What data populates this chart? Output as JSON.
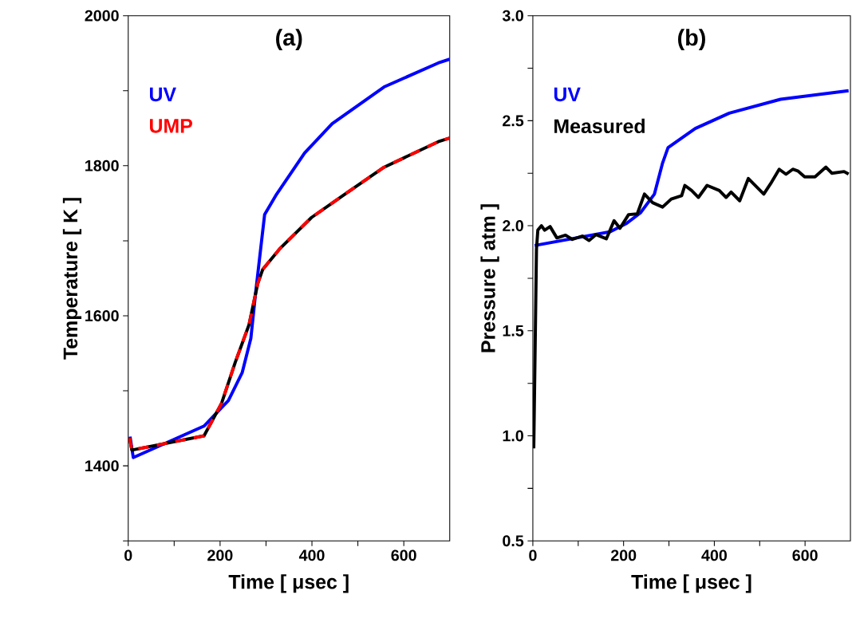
{
  "chart_data": [
    {
      "type": "line",
      "title": "(a)",
      "xlabel": "Time [ μsec ]",
      "ylabel": "Temperature [ K ]",
      "legend": "top left",
      "xlim": [
        0,
        700
      ],
      "ylim": [
        1300,
        2000
      ],
      "xticks": [
        0,
        {
          "value": 100,
          "label": null
        },
        200,
        {
          "value": 300,
          "label": null
        },
        400,
        {
          "value": 500,
          "label": null
        },
        600
      ],
      "yticks": [
        {
          "value": 1300,
          "label": null
        },
        1400,
        {
          "value": 1500,
          "label": null
        },
        1600,
        {
          "value": 1700,
          "label": null
        },
        1800,
        {
          "value": 1900,
          "label": null
        },
        2000
      ],
      "series": [
        {
          "name": "UV",
          "color": "#0000ff",
          "line_style": "solid",
          "x": [
            4,
            11,
            165,
            218,
            248,
            267,
            278,
            290,
            297,
            323,
            384,
            444,
            557,
            675,
            700
          ],
          "values": [
            1439,
            1411,
            1453,
            1487,
            1524,
            1570,
            1634,
            1698,
            1735,
            1762,
            1817,
            1856,
            1905,
            1937,
            1942
          ]
        },
        {
          "color": "#000000",
          "line_style": "solid",
          "x": [
            3,
            8,
            165,
            203,
            233,
            263,
            282,
            293,
            331,
            399,
            474,
            557,
            675,
            700
          ],
          "values": [
            1437,
            1421,
            1440,
            1483,
            1538,
            1588,
            1643,
            1662,
            1690,
            1731,
            1763,
            1798,
            1832,
            1837
          ]
        },
        {
          "name": "UMP",
          "color": "#ff0000",
          "line_style": "dashed",
          "x": [
            3,
            8,
            165,
            203,
            233,
            263,
            282,
            293,
            331,
            399,
            474,
            557,
            675,
            700
          ],
          "values": [
            1437,
            1421,
            1440,
            1483,
            1538,
            1588,
            1643,
            1662,
            1690,
            1731,
            1763,
            1798,
            1832,
            1837
          ]
        }
      ]
    },
    {
      "type": "line",
      "title": "(b)",
      "xlabel": "Time [ μsec ]",
      "ylabel": "Pressure [ atm ]",
      "legend": "top left",
      "xlim": [
        0,
        700
      ],
      "ylim": [
        0.5,
        3.0
      ],
      "xticks": [
        0,
        {
          "value": 100,
          "label": null
        },
        200,
        {
          "value": 300,
          "label": null
        },
        400,
        {
          "value": 500,
          "label": null
        },
        600
      ],
      "yticks": [
        0.5,
        {
          "value": 0.75,
          "label": null
        },
        {
          "value": 1.0,
          "label": "1.0"
        },
        {
          "value": 1.25,
          "label": null
        },
        1.5,
        {
          "value": 1.75,
          "label": null
        },
        {
          "value": 2.0,
          "label": "2.0"
        },
        {
          "value": 2.25,
          "label": null
        },
        2.5,
        {
          "value": 2.75,
          "label": null
        },
        {
          "value": 3.0,
          "label": "3.0"
        }
      ],
      "series": [
        {
          "name": "UV",
          "color": "#0000ff",
          "line_style": "solid",
          "x": [
            4,
            170,
            207,
            237,
            268,
            286,
            298,
            358,
            433,
            546,
            696
          ],
          "values": [
            1.906,
            1.971,
            2.012,
            2.061,
            2.151,
            2.299,
            2.372,
            2.463,
            2.536,
            2.602,
            2.643
          ]
        },
        {
          "name": "Measured",
          "color": "#000000",
          "line_style": "solid",
          "x": [
            2,
            8,
            11,
            19,
            26,
            38,
            53,
            72,
            87,
            109,
            124,
            139,
            162,
            179,
            192,
            211,
            230,
            246,
            264,
            286,
            305,
            328,
            335,
            350,
            365,
            384,
            411,
            426,
            437,
            456,
            475,
            509,
            524,
            543,
            558,
            573,
            584,
            599,
            622,
            646,
            659,
            686,
            696
          ],
          "values": [
            0.94,
            1.889,
            1.979,
            2.0,
            1.979,
            1.996,
            1.942,
            1.955,
            1.935,
            1.951,
            1.93,
            1.958,
            1.938,
            2.024,
            1.988,
            2.053,
            2.056,
            2.151,
            2.11,
            2.089,
            2.127,
            2.143,
            2.192,
            2.168,
            2.135,
            2.192,
            2.168,
            2.135,
            2.16,
            2.119,
            2.225,
            2.151,
            2.2,
            2.269,
            2.245,
            2.269,
            2.261,
            2.233,
            2.233,
            2.279,
            2.25,
            2.258,
            2.246
          ]
        }
      ]
    }
  ]
}
